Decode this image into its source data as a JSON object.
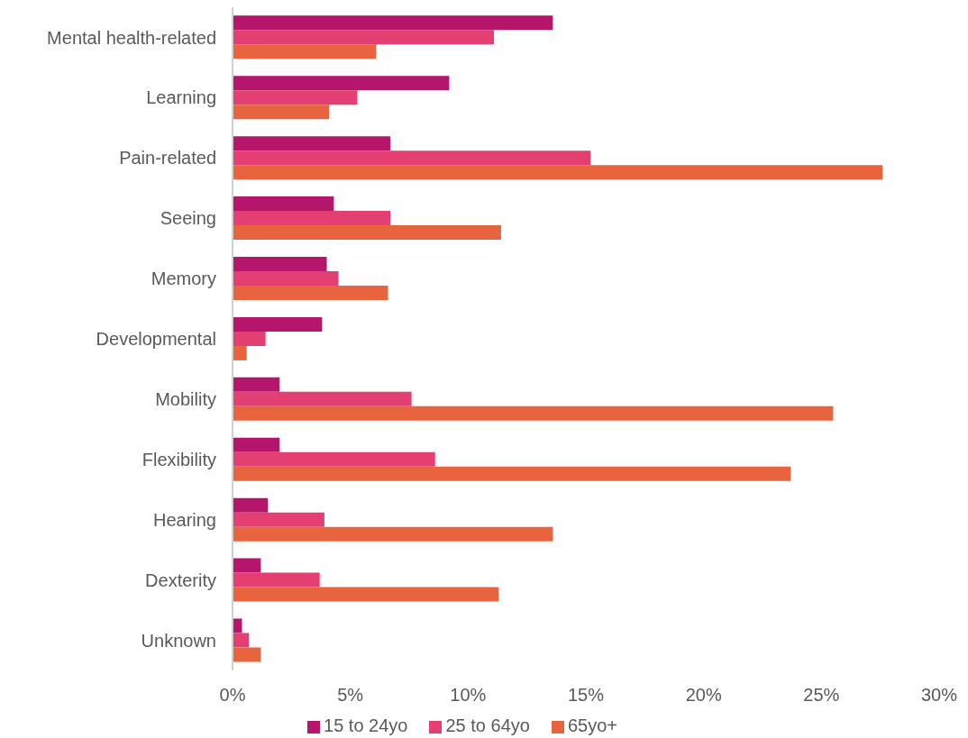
{
  "chart_data": {
    "type": "bar",
    "orientation": "horizontal",
    "categories": [
      "Mental health-related",
      "Learning",
      "Pain-related",
      "Seeing",
      "Memory",
      "Developmental",
      "Mobility",
      "Flexibility",
      "Hearing",
      "Dexterity",
      "Unknown"
    ],
    "series": [
      {
        "name": "15 to 24yo",
        "color": "#b5166b",
        "values": [
          13.6,
          9.2,
          6.7,
          4.3,
          4.0,
          3.8,
          2.0,
          2.0,
          1.5,
          1.2,
          0.4
        ]
      },
      {
        "name": "25 to 64yo",
        "color": "#e33f72",
        "values": [
          11.1,
          5.3,
          15.2,
          6.7,
          4.5,
          1.4,
          7.6,
          8.6,
          3.9,
          3.7,
          0.7
        ]
      },
      {
        "name": "65yo+",
        "color": "#e8643f",
        "values": [
          6.1,
          4.1,
          27.6,
          11.4,
          6.6,
          0.6,
          25.5,
          23.7,
          13.6,
          11.3,
          1.2
        ]
      }
    ],
    "xlim": [
      0,
      30
    ],
    "xticks": [
      {
        "value": 0,
        "label": "0%"
      },
      {
        "value": 5,
        "label": "5%"
      },
      {
        "value": 10,
        "label": "10%"
      },
      {
        "value": 15,
        "label": "15%"
      },
      {
        "value": 20,
        "label": "20%"
      },
      {
        "value": 25,
        "label": "25%"
      },
      {
        "value": 30,
        "label": "30%"
      }
    ],
    "grid": false,
    "legend": "bottom"
  }
}
